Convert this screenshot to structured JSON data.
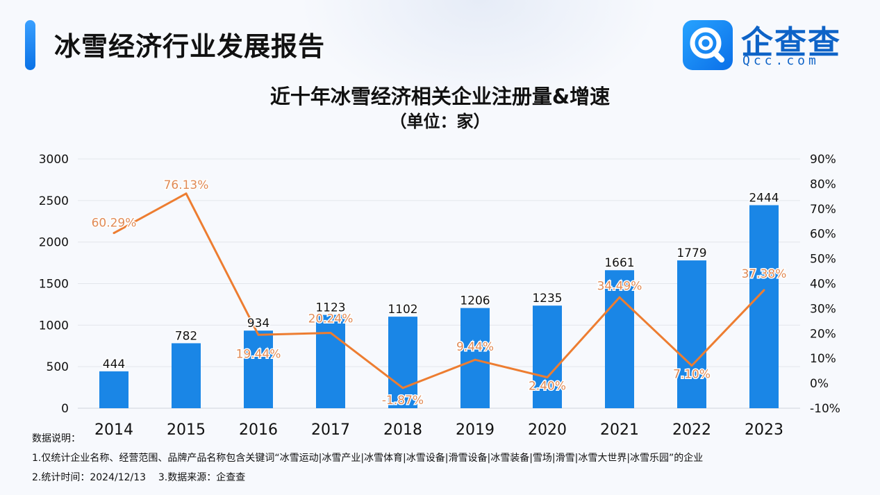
{
  "header": {
    "report_title": "冰雪经济行业发展报告",
    "logo_name": "企查查",
    "logo_url": "Qcc.com"
  },
  "colors": {
    "bar": "#1a86e6",
    "line": "#ed7d31",
    "line_label": "#e08a55"
  },
  "chart_data": {
    "type": "bar",
    "title": "近十年冰雪经济相关企业注册量&增速",
    "subtitle": "（单位：家）",
    "categories": [
      "2014",
      "2015",
      "2016",
      "2017",
      "2018",
      "2019",
      "2020",
      "2021",
      "2022",
      "2023"
    ],
    "series": [
      {
        "values": [
          444,
          782,
          934,
          1123,
          1102,
          1206,
          1235,
          1661,
          1779,
          2444
        ],
        "labels": [
          "444",
          "782",
          "934",
          "1123",
          "1102",
          "1206",
          "1235",
          "1661",
          "1779",
          "2444"
        ]
      },
      {
        "type": "line",
        "axis": "right",
        "values": [
          60.29,
          76.13,
          19.44,
          20.24,
          -1.87,
          9.44,
          2.4,
          34.49,
          7.1,
          37.38
        ],
        "labels": [
          "60.29%",
          "76.13%",
          "19.44%",
          "20.24%",
          "-1.87%",
          "9.44%",
          "2.40%",
          "34.49%",
          "7.10%",
          "37.38%"
        ]
      }
    ],
    "ylim": [
      0,
      3000
    ],
    "yticks": [
      "3000",
      "2500",
      "2000",
      "1500",
      "1000",
      "500",
      "0"
    ],
    "y2lim": [
      -10,
      90
    ],
    "y2ticks": [
      "90%",
      "80%",
      "70%",
      "60%",
      "50%",
      "40%",
      "30%",
      "20%",
      "10%",
      "0%",
      "-10%"
    ],
    "grid": true
  },
  "notes": {
    "heading": "数据说明：",
    "line1": "1.仅统计企业名称、经营范围、品牌产品名称包含关键词“冰雪运动|冰雪产业|冰雪体育|冰雪设备|滑雪设备|冰雪装备|雪场|滑雪|冰雪大世界|冰雪乐园”的企业",
    "line2": "2.统计时间：2024/12/13    3.数据来源：企查查"
  }
}
